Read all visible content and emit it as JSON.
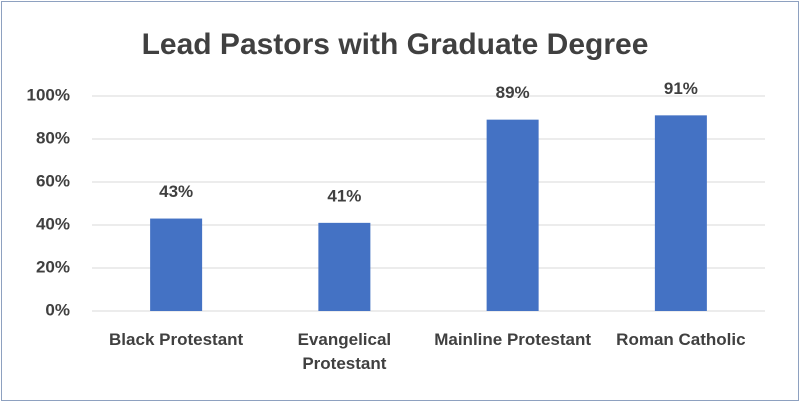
{
  "chart_data": {
    "type": "bar",
    "title": "Lead Pastors with Graduate Degree",
    "categories": [
      "Black Protestant",
      "Evangelical Protestant",
      "Mainline Protestant",
      "Roman Catholic"
    ],
    "values": [
      43,
      41,
      89,
      91
    ],
    "value_labels": [
      "43%",
      "41%",
      "89%",
      "91%"
    ],
    "color": "#4472c4",
    "ylim": [
      0,
      100
    ],
    "yticks": [
      {
        "value": 0,
        "label": "0%"
      },
      {
        "value": 20,
        "label": "20%"
      },
      {
        "value": 40,
        "label": "40%"
      },
      {
        "value": 60,
        "label": "60%"
      },
      {
        "value": 80,
        "label": "80%"
      },
      {
        "value": 100,
        "label": "100%"
      }
    ],
    "grid": true
  }
}
